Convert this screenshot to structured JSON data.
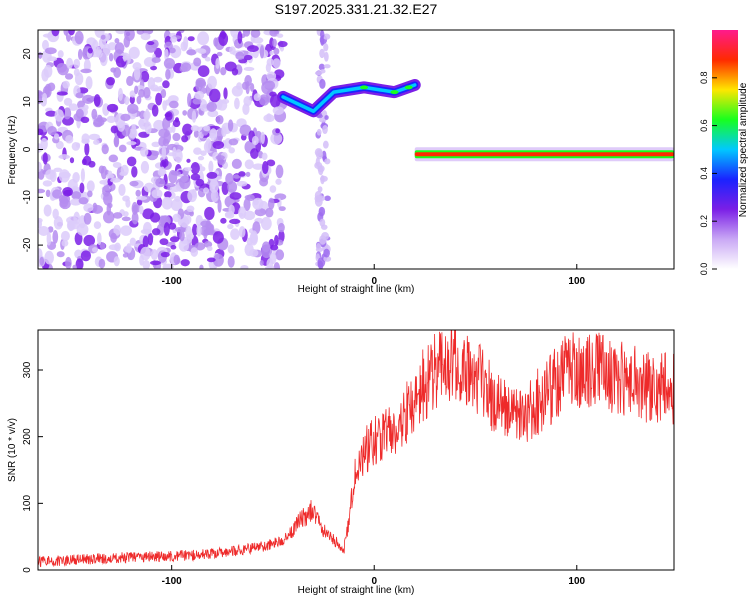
{
  "title": "S197.2025.331.21.32.E27",
  "colors": {
    "snr_line": "#ee2a2a",
    "colorbar": [
      "#ffffff",
      "#c9a8f5",
      "#7b1fe6",
      "#1a23ff",
      "#00c8ff",
      "#18ff1e",
      "#ffe600",
      "#ff2a00",
      "#ff1a8c"
    ]
  },
  "chart_data": [
    {
      "type": "heatmap",
      "name": "spectrogram",
      "title": "S197.2025.331.21.32.E27",
      "xlabel": "Height of straight line (km)",
      "ylabel": "Frequency (Hz)",
      "xlim": [
        -166,
        148
      ],
      "ylim": [
        -25,
        25
      ],
      "xticks": [
        -100,
        0,
        100
      ],
      "yticks": [
        -20,
        -10,
        0,
        10,
        20
      ],
      "colorbar": {
        "label": "Normalized spectral amplitude",
        "range": [
          0,
          1
        ],
        "ticks": [
          "0.0",
          "0.2",
          "0.4",
          "0.6",
          "0.8"
        ]
      },
      "features": [
        {
          "name": "noise-region",
          "x_range": [
            -166,
            -45
          ],
          "y_range": [
            -25,
            25
          ],
          "amplitude": 0.12
        },
        {
          "name": "upper-tone",
          "points": [
            [
              -45,
              11
            ],
            [
              -30,
              8
            ],
            [
              -20,
              12
            ],
            [
              -5,
              13
            ],
            [
              10,
              12
            ],
            [
              20,
              13.5
            ]
          ],
          "amplitude": 0.6
        },
        {
          "name": "lower-tone",
          "x_range": [
            20,
            148
          ],
          "y_center": -1,
          "amplitude": 0.95
        }
      ]
    },
    {
      "type": "line",
      "name": "snr",
      "title": "",
      "xlabel": "Height of straight line (km)",
      "ylabel": "SNR (10 * v/v)",
      "xlim": [
        -166,
        148
      ],
      "ylim": [
        0,
        360
      ],
      "xticks": [
        -100,
        0,
        100
      ],
      "yticks": [
        0,
        100,
        200,
        300
      ],
      "series": [
        {
          "name": "SNR",
          "x": [
            -166,
            -150,
            -130,
            -110,
            -90,
            -70,
            -55,
            -45,
            -40,
            -35,
            -30,
            -25,
            -22,
            -18,
            -15,
            -12,
            -10,
            -8,
            -5,
            0,
            5,
            10,
            15,
            20,
            25,
            30,
            35,
            40,
            45,
            50,
            55,
            60,
            65,
            70,
            75,
            80,
            85,
            90,
            95,
            100,
            105,
            110,
            115,
            120,
            125,
            130,
            135,
            140,
            145,
            148
          ],
          "values": [
            12,
            15,
            18,
            20,
            22,
            28,
            35,
            45,
            60,
            80,
            90,
            60,
            50,
            40,
            30,
            80,
            140,
            160,
            180,
            190,
            210,
            215,
            230,
            260,
            280,
            300,
            310,
            320,
            300,
            295,
            270,
            250,
            240,
            235,
            238,
            250,
            265,
            280,
            295,
            300,
            305,
            300,
            295,
            290,
            285,
            280,
            275,
            270,
            275,
            270
          ]
        }
      ]
    }
  ]
}
